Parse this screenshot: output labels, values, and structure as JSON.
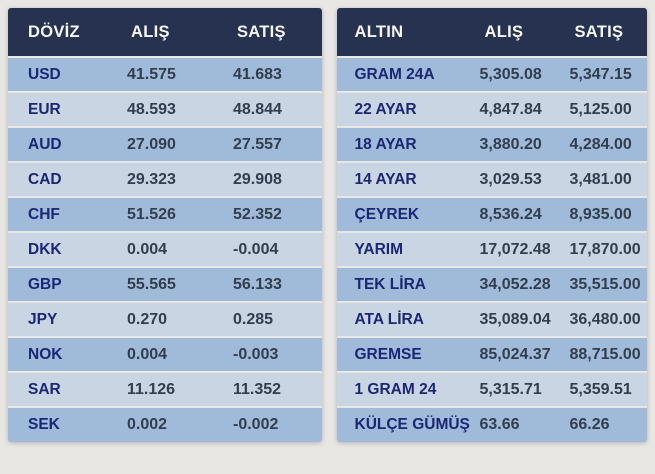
{
  "colors": {
    "page_background": "#e9e7e4",
    "header_background": "#273250",
    "row_dark": "#a0bbd9",
    "row_light": "#c9d5e3",
    "label_text": "#1b2674",
    "value_text": "#323d4d",
    "header_text": "#f5f7fa"
  },
  "currency_table": {
    "headers": [
      "DÖVİZ",
      "ALIŞ",
      "SATIŞ"
    ],
    "rows": [
      {
        "label": "USD",
        "buy": "41.575",
        "sell": "41.683"
      },
      {
        "label": "EUR",
        "buy": "48.593",
        "sell": "48.844"
      },
      {
        "label": "AUD",
        "buy": "27.090",
        "sell": "27.557"
      },
      {
        "label": "CAD",
        "buy": "29.323",
        "sell": "29.908"
      },
      {
        "label": "CHF",
        "buy": "51.526",
        "sell": "52.352"
      },
      {
        "label": "DKK",
        "buy": "0.004",
        "sell": "-0.004"
      },
      {
        "label": "GBP",
        "buy": "55.565",
        "sell": "56.133"
      },
      {
        "label": "JPY",
        "buy": "0.270",
        "sell": "0.285"
      },
      {
        "label": "NOK",
        "buy": "0.004",
        "sell": "-0.003"
      },
      {
        "label": "SAR",
        "buy": "11.126",
        "sell": "11.352"
      },
      {
        "label": "SEK",
        "buy": "0.002",
        "sell": "-0.002"
      }
    ]
  },
  "gold_table": {
    "headers": [
      "ALTIN",
      "ALIŞ",
      "SATIŞ"
    ],
    "rows": [
      {
        "label": "GRAM 24A",
        "buy": "5,305.08",
        "sell": "5,347.15"
      },
      {
        "label": "22 AYAR",
        "buy": "4,847.84",
        "sell": "5,125.00"
      },
      {
        "label": "18 AYAR",
        "buy": "3,880.20",
        "sell": "4,284.00"
      },
      {
        "label": "14 AYAR",
        "buy": "3,029.53",
        "sell": "3,481.00"
      },
      {
        "label": "ÇEYREK",
        "buy": "8,536.24",
        "sell": "8,935.00"
      },
      {
        "label": "YARIM",
        "buy": "17,072.48",
        "sell": "17,870.00"
      },
      {
        "label": "TEK LİRA",
        "buy": "34,052.28",
        "sell": "35,515.00"
      },
      {
        "label": "ATA LİRA",
        "buy": "35,089.04",
        "sell": "36,480.00"
      },
      {
        "label": "GREMSE",
        "buy": "85,024.37",
        "sell": "88,715.00"
      },
      {
        "label": "1 GRAM 24",
        "buy": "5,315.71",
        "sell": "5,359.51"
      },
      {
        "label": "KÜLÇE GÜMÜŞ",
        "buy": "63.66",
        "sell": "66.26"
      }
    ]
  }
}
